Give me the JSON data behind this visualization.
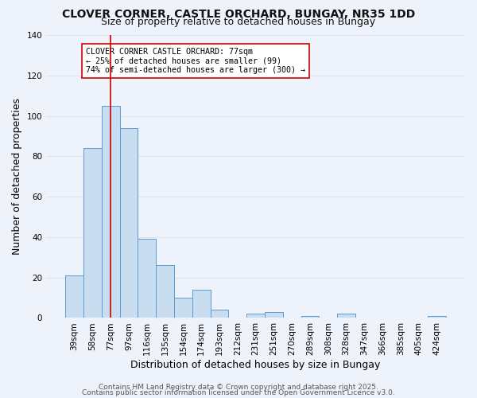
{
  "title": "CLOVER CORNER, CASTLE ORCHARD, BUNGAY, NR35 1DD",
  "subtitle": "Size of property relative to detached houses in Bungay",
  "xlabel": "Distribution of detached houses by size in Bungay",
  "ylabel": "Number of detached properties",
  "bins": [
    "39sqm",
    "58sqm",
    "77sqm",
    "97sqm",
    "116sqm",
    "135sqm",
    "154sqm",
    "174sqm",
    "193sqm",
    "212sqm",
    "231sqm",
    "251sqm",
    "270sqm",
    "289sqm",
    "308sqm",
    "328sqm",
    "347sqm",
    "366sqm",
    "385sqm",
    "405sqm",
    "424sqm"
  ],
  "bar_values": [
    21,
    84,
    105,
    94,
    39,
    26,
    10,
    14,
    4,
    0,
    2,
    3,
    0,
    1,
    0,
    2,
    0,
    0,
    0,
    0,
    1
  ],
  "bar_color": "#c9ddf0",
  "bar_edge_color": "#5b9bd5",
  "ylim": [
    0,
    140
  ],
  "yticks": [
    0,
    20,
    40,
    60,
    80,
    100,
    120,
    140
  ],
  "vline_x_index": 2,
  "vline_color": "#cc0000",
  "annotation_title": "CLOVER CORNER CASTLE ORCHARD: 77sqm",
  "annotation_line1": "← 25% of detached houses are smaller (99)",
  "annotation_line2": "74% of semi-detached houses are larger (300) →",
  "footer1": "Contains HM Land Registry data © Crown copyright and database right 2025.",
  "footer2": "Contains public sector information licensed under the Open Government Licence v3.0.",
  "background_color": "#eef2fa",
  "grid_color": "#dde4f0",
  "title_fontsize": 10,
  "subtitle_fontsize": 9,
  "axis_label_fontsize": 9,
  "tick_fontsize": 7.5,
  "footer_fontsize": 6.5
}
